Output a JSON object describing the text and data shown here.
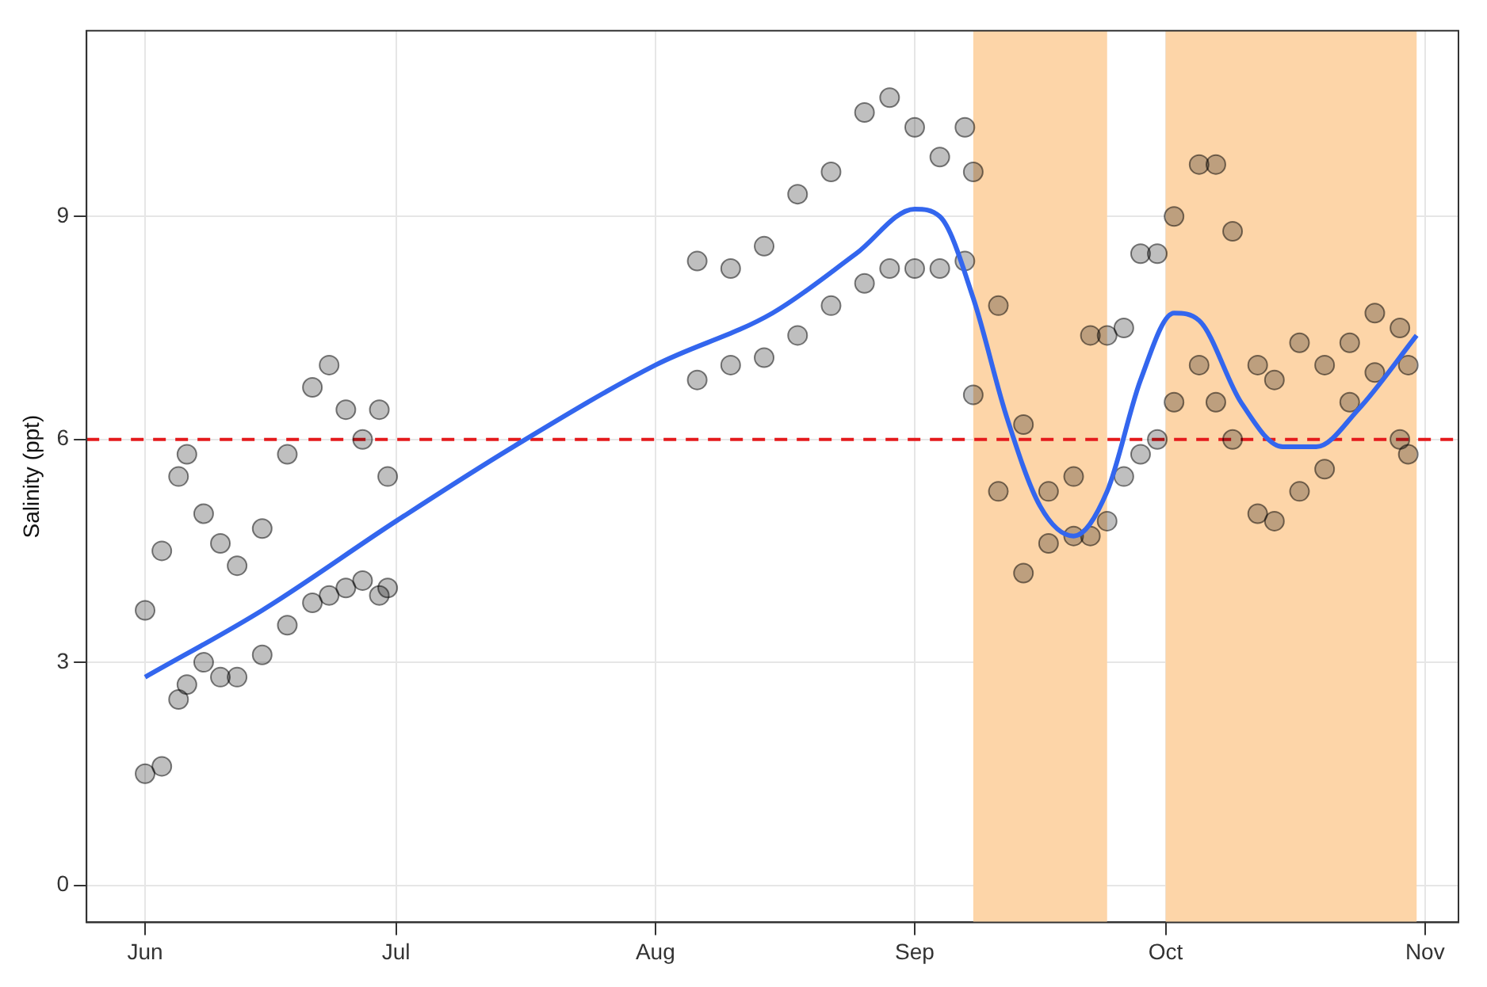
{
  "chart_data": {
    "type": "scatter",
    "ylabel": "Salinity (ppt)",
    "xlim": [
      "--05-25",
      "--11-05"
    ],
    "ylim": [
      -0.5,
      11.5
    ],
    "xticks": [
      {
        "value": "--06-01",
        "label": "Jun"
      },
      {
        "value": "--07-01",
        "label": "Jul"
      },
      {
        "value": "--08-01",
        "label": "Aug"
      },
      {
        "value": "--09-01",
        "label": "Sep"
      },
      {
        "value": "--10-01",
        "label": "Oct"
      },
      {
        "value": "--11-01",
        "label": "Nov"
      }
    ],
    "yticks": [
      0,
      3,
      6,
      9
    ],
    "grid": true,
    "legend": false,
    "bands": [
      {
        "axis": "x",
        "from": "--09-08",
        "to": "--09-24",
        "color": "#fdd5a8"
      },
      {
        "axis": "x",
        "from": "--10-01",
        "to": "--10-31",
        "color": "#fdd5a8"
      }
    ],
    "ref_lines": [
      {
        "axis": "y",
        "value": 6,
        "color": "#e41a1c",
        "line_style": "dashed"
      }
    ],
    "series": [
      {
        "color": "#000000",
        "marker": "circle",
        "x": [
          "--06-01",
          "--06-01",
          "--06-03",
          "--06-03",
          "--06-05",
          "--06-05",
          "--06-06",
          "--06-06",
          "--06-08",
          "--06-08",
          "--06-10",
          "--06-10",
          "--06-12",
          "--06-12",
          "--06-15",
          "--06-15",
          "--06-18",
          "--06-18",
          "--06-21",
          "--06-21",
          "--06-23",
          "--06-23",
          "--06-25",
          "--06-25",
          "--06-27",
          "--06-27",
          "--06-29",
          "--06-29",
          "--06-30",
          "--06-30",
          "--08-06",
          "--08-06",
          "--08-10",
          "--08-10",
          "--08-14",
          "--08-14",
          "--08-18",
          "--08-18",
          "--08-22",
          "--08-22",
          "--08-26",
          "--08-26",
          "--08-29",
          "--08-29",
          "--09-01",
          "--09-01",
          "--09-04",
          "--09-04",
          "--09-07",
          "--09-07",
          "--09-08",
          "--09-08",
          "--09-11",
          "--09-11",
          "--09-14",
          "--09-14",
          "--09-17",
          "--09-17",
          "--09-20",
          "--09-20",
          "--09-22",
          "--09-22",
          "--09-24",
          "--09-24",
          "--09-26",
          "--09-26",
          "--09-28",
          "--09-28",
          "--09-30",
          "--09-30",
          "--10-02",
          "--10-02",
          "--10-05",
          "--10-05",
          "--10-07",
          "--10-07",
          "--10-09",
          "--10-09",
          "--10-12",
          "--10-12",
          "--10-14",
          "--10-14",
          "--10-17",
          "--10-17",
          "--10-20",
          "--10-20",
          "--10-23",
          "--10-23",
          "--10-26",
          "--10-26",
          "--10-29",
          "--10-29",
          "--10-30",
          "--10-30"
        ],
        "values": [
          1.5,
          3.7,
          1.6,
          4.5,
          2.5,
          5.5,
          2.7,
          5.8,
          3.0,
          5.0,
          2.8,
          4.6,
          2.8,
          4.3,
          3.1,
          4.8,
          3.5,
          5.8,
          3.8,
          6.7,
          3.9,
          7.0,
          4.0,
          6.4,
          4.1,
          6.0,
          3.9,
          6.4,
          4.0,
          5.5,
          6.8,
          8.4,
          7.0,
          8.3,
          7.1,
          8.6,
          7.4,
          9.3,
          7.8,
          9.6,
          8.1,
          10.4,
          8.3,
          10.6,
          8.3,
          10.2,
          8.3,
          9.8,
          8.4,
          10.2,
          6.6,
          9.6,
          5.3,
          7.8,
          4.2,
          6.2,
          4.6,
          5.3,
          4.7,
          5.5,
          4.7,
          7.4,
          4.9,
          7.4,
          5.5,
          7.5,
          5.8,
          8.5,
          6.0,
          8.5,
          6.5,
          9.0,
          7.0,
          9.7,
          6.5,
          9.7,
          6.0,
          8.8,
          5.0,
          7.0,
          4.9,
          6.8,
          5.3,
          7.3,
          5.6,
          7.0,
          6.5,
          7.3,
          6.9,
          7.7,
          6.0,
          7.5,
          5.8,
          7.0
        ]
      },
      {
        "type": "line",
        "color": "#3366ee",
        "marker": "none",
        "line_style": "solid",
        "x": [
          "--06-01",
          "--06-15",
          "--07-01",
          "--07-15",
          "--08-01",
          "--08-15",
          "--08-25",
          "--09-01",
          "--09-04",
          "--09-08",
          "--09-12",
          "--09-16",
          "--09-20",
          "--09-24",
          "--09-28",
          "--10-02",
          "--10-05",
          "--10-10",
          "--10-15",
          "--10-19",
          "--10-24",
          "--10-31"
        ],
        "values": [
          2.8,
          3.7,
          4.9,
          5.9,
          7.0,
          7.7,
          8.5,
          9.1,
          9.0,
          7.9,
          6.3,
          5.1,
          4.7,
          5.3,
          6.8,
          7.7,
          7.6,
          6.5,
          5.9,
          5.9,
          6.4,
          7.4
        ]
      }
    ]
  }
}
